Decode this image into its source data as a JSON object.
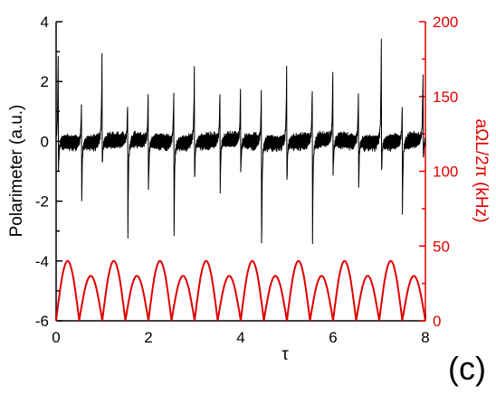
{
  "panel_label": "(c)",
  "chart_data": {
    "type": "line",
    "xlabel": "τ",
    "ylabel_left": "Polarimeter (a.u.)",
    "ylabel_right": "aΩL/2π (kHz)",
    "xlim": [
      0,
      8
    ],
    "ylim_left": [
      -6,
      4
    ],
    "ylim_right": [
      0,
      200
    ],
    "x_ticks": [
      "0",
      "2",
      "4",
      "6",
      "8"
    ],
    "y_left_ticks": [
      "-6",
      "-4",
      "-2",
      "0",
      "2",
      "4"
    ],
    "y_right_ticks": [
      "0",
      "50",
      "100",
      "150",
      "200"
    ],
    "grid": false,
    "legend": "none",
    "colors": {
      "polarimeter": "#000000",
      "rabi": "#e00000",
      "right_axis": "#e00000"
    },
    "series": [
      {
        "axis": "left",
        "description_peaks": "polarimeter trace: rapid oscillation (~±0.4) with sharp resonance spikes",
        "spikes": [
          {
            "x": 0.05,
            "top": 3.3,
            "bottom": -1.0
          },
          {
            "x": 0.55,
            "top": 1.2,
            "bottom": -2.3
          },
          {
            "x": 1.0,
            "top": 3.5,
            "bottom": -0.7
          },
          {
            "x": 1.55,
            "top": 1.2,
            "bottom": -3.6
          },
          {
            "x": 2.0,
            "top": 2.0,
            "bottom": -1.6
          },
          {
            "x": 2.55,
            "top": 1.6,
            "bottom": -3.6
          },
          {
            "x": 3.0,
            "top": 3.0,
            "bottom": -1.2
          },
          {
            "x": 3.55,
            "top": 1.6,
            "bottom": -1.9
          },
          {
            "x": 4.0,
            "top": 2.2,
            "bottom": -1.0
          },
          {
            "x": 4.45,
            "top": 1.9,
            "bottom": -3.5
          },
          {
            "x": 5.0,
            "top": 3.0,
            "bottom": -1.3
          },
          {
            "x": 5.55,
            "top": 1.7,
            "bottom": -3.8
          },
          {
            "x": 6.0,
            "top": 2.9,
            "bottom": -1.1
          },
          {
            "x": 6.55,
            "top": 1.6,
            "bottom": -1.8
          },
          {
            "x": 7.05,
            "top": 3.8,
            "bottom": -1.0
          },
          {
            "x": 7.5,
            "top": 1.2,
            "bottom": -2.5
          },
          {
            "x": 7.95,
            "top": 2.3,
            "bottom": -0.7
          }
        ]
      },
      {
        "axis": "right",
        "description": "red |sin| arches, alternating peak heights",
        "period": 0.5,
        "peaks": [
          40,
          30
        ]
      }
    ]
  }
}
